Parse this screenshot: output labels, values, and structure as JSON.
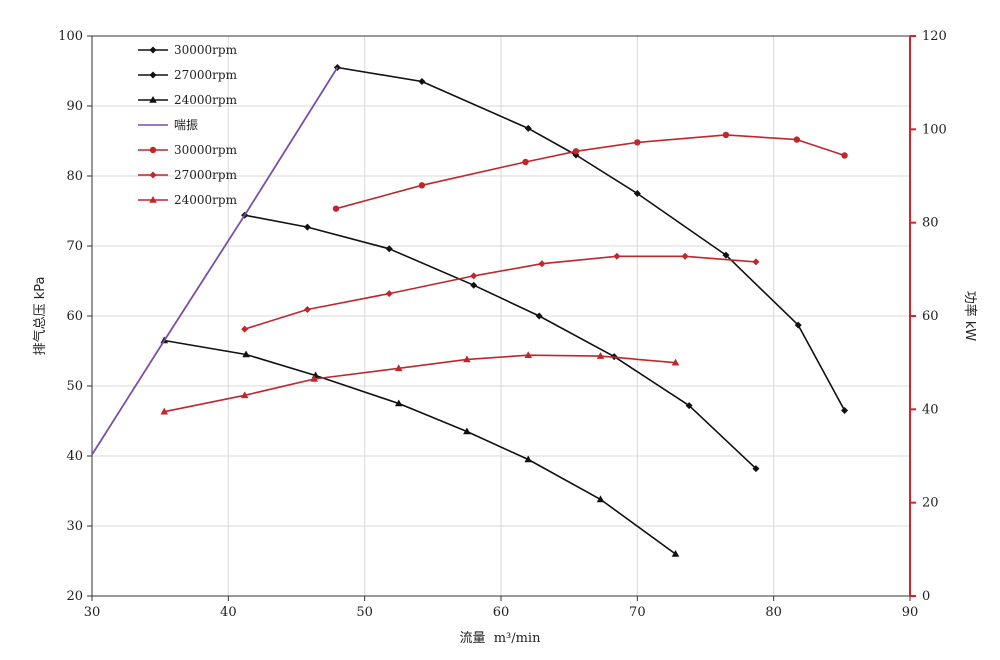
{
  "chart_data": {
    "type": "line",
    "xlabel": "流量",
    "xlabel_unit": "m³/min",
    "ylabel_left": "排气总压 kPa",
    "ylabel_right": "功率 kW",
    "xlim": [
      30,
      90
    ],
    "ylim_left": [
      20,
      100
    ],
    "ylim_right": [
      0,
      120
    ],
    "x_ticks": [
      30,
      40,
      50,
      60,
      70,
      80,
      90
    ],
    "y_left_ticks": [
      20,
      30,
      40,
      50,
      60,
      70,
      80,
      90,
      100
    ],
    "y_right_ticks": [
      0,
      20,
      40,
      60,
      80,
      100,
      120
    ],
    "grid": true,
    "legend_position": "top-left",
    "colors": {
      "pressure": "#111111",
      "power": "#c0272d",
      "surge": "#7b4fa8",
      "right_axis": "#d0242b"
    },
    "series": [
      {
        "name": "30000rpm",
        "axis": "left",
        "color": "#111111",
        "marker": "diamond",
        "x": [
          48,
          54.2,
          62,
          65.5,
          70,
          76.5,
          81.8,
          85.2
        ],
        "y": [
          95.5,
          93.5,
          86.8,
          83,
          77.5,
          68.7,
          58.7,
          46.5
        ]
      },
      {
        "name": "27000rpm",
        "axis": "left",
        "color": "#111111",
        "marker": "diamond",
        "x": [
          41.2,
          45.8,
          51.8,
          58,
          62.8,
          68.3,
          73.8,
          78.7
        ],
        "y": [
          74.4,
          72.7,
          69.6,
          64.4,
          60,
          54.2,
          47.2,
          38.2
        ]
      },
      {
        "name": "24000rpm",
        "axis": "left",
        "color": "#111111",
        "marker": "triangle",
        "x": [
          35.3,
          41.3,
          46.4,
          52.5,
          57.5,
          62,
          67.3,
          72.8
        ],
        "y": [
          56.5,
          54.5,
          51.5,
          47.5,
          43.5,
          39.5,
          33.8,
          26
        ]
      },
      {
        "name": "喘振",
        "axis": "left",
        "color": "#7b4fa8",
        "marker": "none",
        "x": [
          30,
          35.3,
          41.2,
          48
        ],
        "y": [
          40.2,
          56.5,
          74.4,
          95.5
        ]
      },
      {
        "name": "30000rpm",
        "axis": "right",
        "color": "#c0272d",
        "marker": "circle",
        "x": [
          47.9,
          54.2,
          61.8,
          65.5,
          70,
          76.5,
          81.7,
          85.2
        ],
        "y": [
          83,
          88,
          93,
          95.3,
          97.2,
          98.8,
          97.8,
          94.4
        ]
      },
      {
        "name": "27000rpm",
        "axis": "right",
        "color": "#c0272d",
        "marker": "diamond",
        "x": [
          41.2,
          45.8,
          51.8,
          58,
          63,
          68.5,
          73.5,
          78.7
        ],
        "y": [
          57.2,
          61.4,
          64.8,
          68.6,
          71.2,
          72.8,
          72.8,
          71.6
        ]
      },
      {
        "name": "24000rpm",
        "axis": "right",
        "color": "#c0272d",
        "marker": "triangle",
        "x": [
          35.3,
          41.2,
          46.3,
          52.5,
          57.5,
          62,
          67.3,
          72.8
        ],
        "y": [
          39.5,
          43,
          46.5,
          48.8,
          50.7,
          51.6,
          51.4,
          50
        ]
      }
    ]
  }
}
